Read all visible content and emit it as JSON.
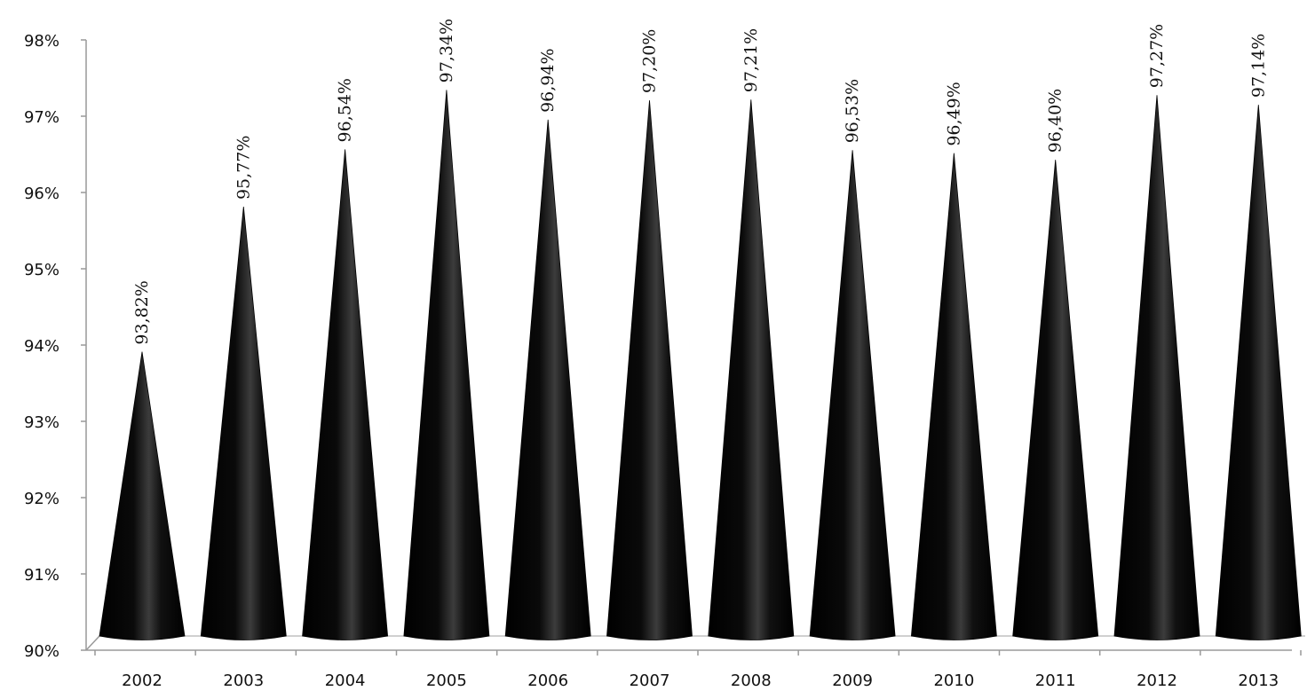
{
  "chart_data": {
    "type": "bar",
    "bar_shape": "cone",
    "categories": [
      "2002",
      "2003",
      "2004",
      "2005",
      "2006",
      "2007",
      "2008",
      "2009",
      "2010",
      "2011",
      "2012",
      "2013"
    ],
    "values": [
      93.82,
      95.77,
      96.54,
      97.34,
      96.94,
      97.2,
      97.21,
      96.53,
      96.49,
      96.4,
      97.27,
      97.14
    ],
    "data_labels": [
      "93,82%",
      "95,77%",
      "96,54%",
      "97,34%",
      "96,94%",
      "97,20%",
      "97,21%",
      "96,53%",
      "96,49%",
      "96,40%",
      "97,27%",
      "97,14%"
    ],
    "y_ticks": [
      "90%",
      "91%",
      "92%",
      "93%",
      "94%",
      "95%",
      "96%",
      "97%",
      "98%"
    ],
    "ylim": [
      90,
      98
    ],
    "title": "",
    "xlabel": "",
    "ylabel": "",
    "grid": false,
    "legend": "none",
    "colors": {
      "bar": "#000000",
      "axis": "#999999",
      "floor": "#c8c8c8"
    }
  }
}
